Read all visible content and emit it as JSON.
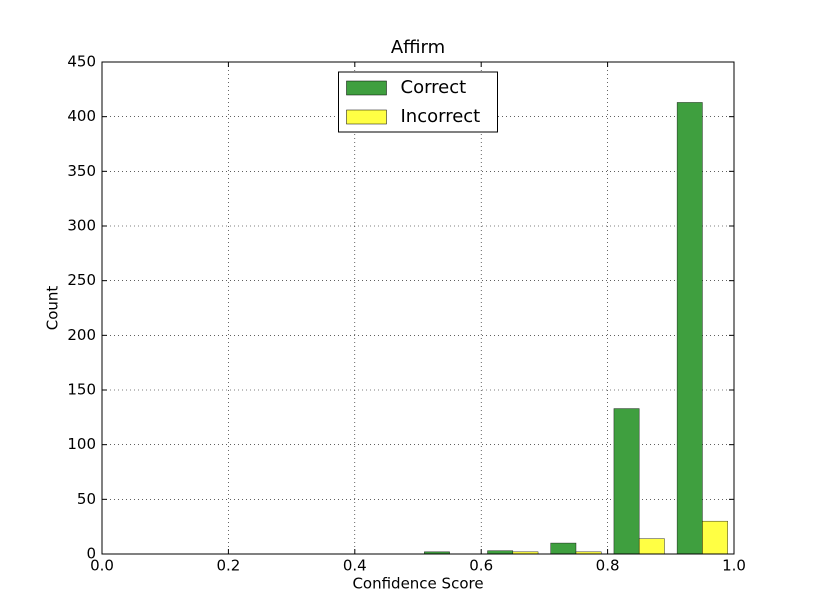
{
  "chart_data": {
    "type": "histogram",
    "title": "Affirm",
    "xlabel": "Confidence Score",
    "ylabel": "Count",
    "bins": [
      0,
      0.1,
      0.2,
      0.3,
      0.4,
      0.5,
      0.6,
      0.7,
      0.8,
      0.9,
      1
    ],
    "series": [
      {
        "name": "Correct",
        "color": "#3f9f3f",
        "values": [
          0,
          0,
          0,
          0,
          0,
          2,
          3,
          10,
          133,
          413
        ]
      },
      {
        "name": "Incorrect",
        "color": "#ffff44",
        "values": [
          0,
          0,
          0,
          0,
          0,
          0,
          2,
          2,
          14,
          30
        ]
      }
    ],
    "xlim": [
      0,
      1
    ],
    "xticks": [
      {
        "value": 0,
        "label": "0.0"
      },
      0.2,
      0.4,
      0.6,
      0.8,
      {
        "value": 1,
        "label": "1.0"
      }
    ],
    "ylim": [
      0,
      450
    ],
    "yticks": [
      0,
      50,
      100,
      150,
      200,
      250,
      300,
      350,
      400,
      450
    ],
    "grid": true,
    "legend": "upper center"
  }
}
